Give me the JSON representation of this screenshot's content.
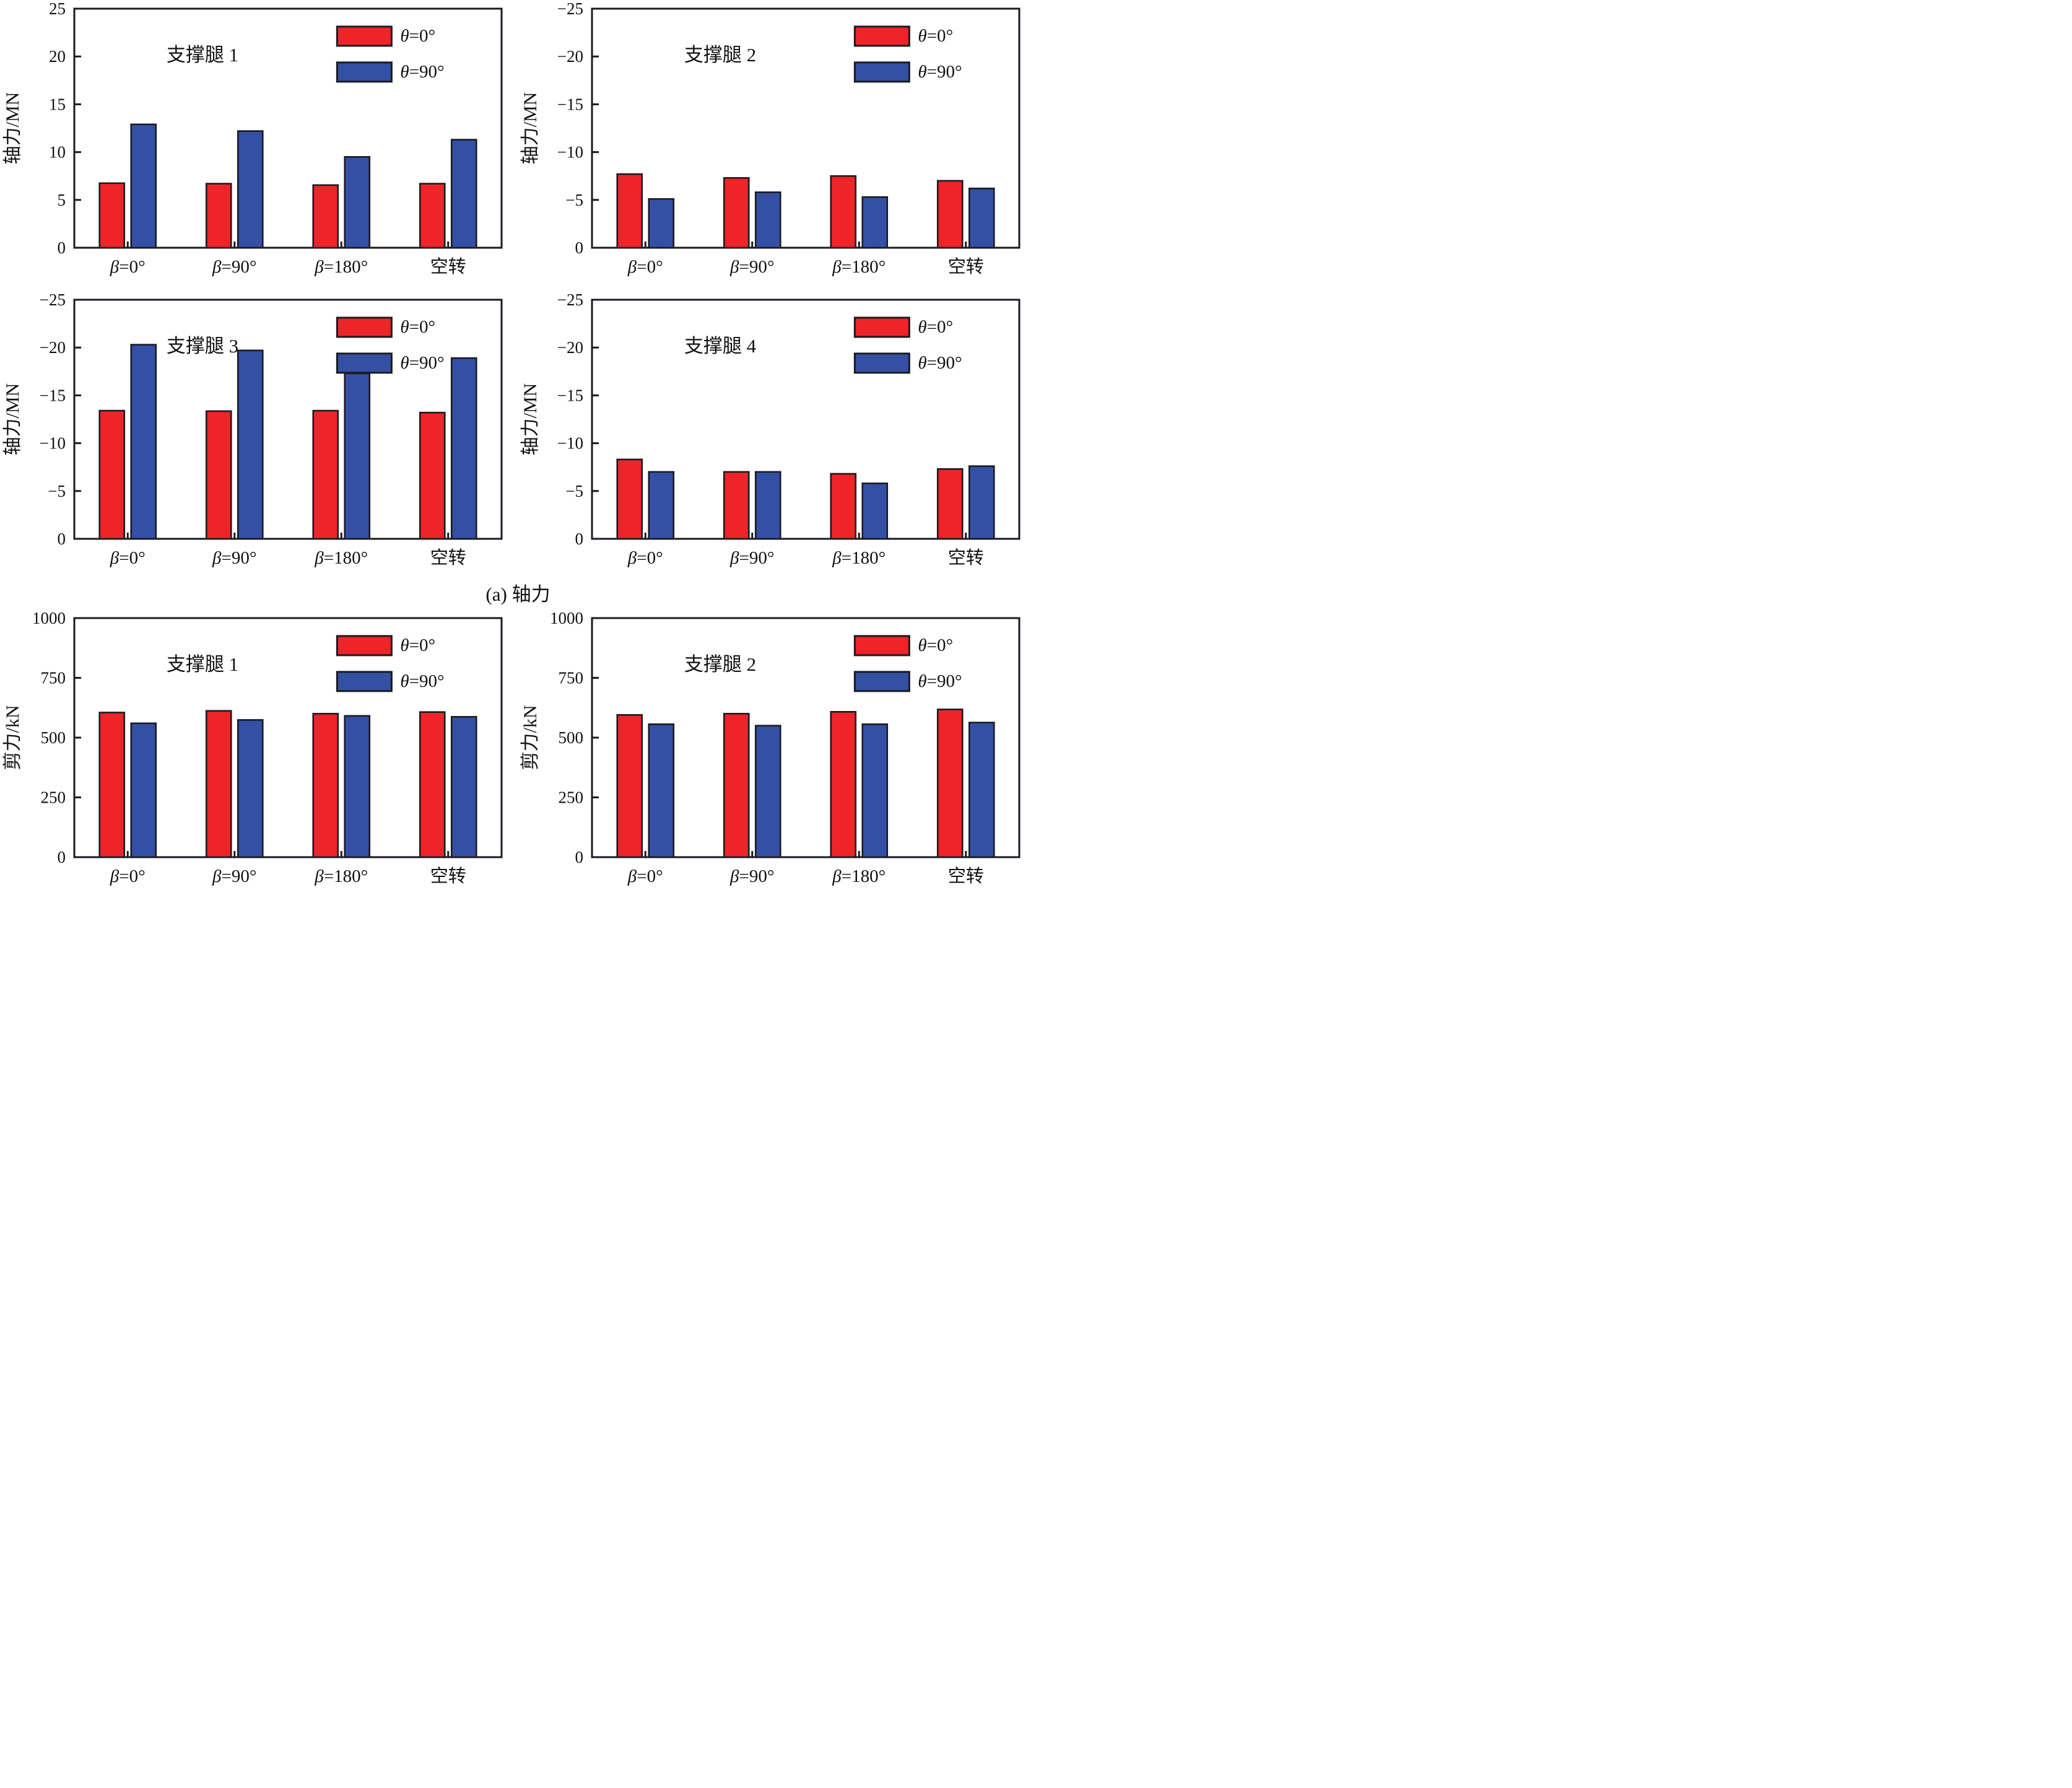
{
  "figure": {
    "caption_a": "(a) 轴力",
    "colors": {
      "red": "#ee2428",
      "blue": "#3450a5",
      "edge": "#1a1a22"
    },
    "legend": {
      "entries": [
        "θ=0°",
        "θ=90°"
      ]
    }
  },
  "chart_data": [
    {
      "id": "axial-leg1",
      "type": "bar",
      "title": "支撑腿 1",
      "ylabel": "轴力/MN",
      "categories": [
        "β=0°",
        "β=90°",
        "β=180°",
        "空转"
      ],
      "yticks": [
        "0",
        "5",
        "10",
        "15",
        "20",
        "25"
      ],
      "ylim": [
        0,
        25
      ],
      "axis_direction": "positive",
      "series": [
        {
          "name": "θ=0°",
          "color": "#ee2428",
          "values": [
            6.75,
            6.7,
            6.55,
            6.7
          ]
        },
        {
          "name": "θ=90°",
          "color": "#3450a5",
          "values": [
            12.9,
            12.2,
            9.5,
            11.3
          ]
        }
      ]
    },
    {
      "id": "axial-leg2",
      "type": "bar",
      "title": "支撑腿 2",
      "ylabel": "轴力/MN",
      "categories": [
        "β=0°",
        "β=90°",
        "β=180°",
        "空转"
      ],
      "yticks": [
        "0",
        "−5",
        "−10",
        "−15",
        "−20",
        "−25"
      ],
      "ylim": [
        0,
        -25
      ],
      "axis_direction": "negative",
      "series": [
        {
          "name": "θ=0°",
          "color": "#ee2428",
          "values": [
            -7.7,
            -7.3,
            -7.5,
            -7.0
          ]
        },
        {
          "name": "θ=90°",
          "color": "#3450a5",
          "values": [
            -5.1,
            -5.8,
            -5.3,
            -6.2
          ]
        }
      ]
    },
    {
      "id": "axial-leg3",
      "type": "bar",
      "title": "支撑腿 3",
      "ylabel": "轴力/MN",
      "categories": [
        "β=0°",
        "β=90°",
        "β=180°",
        "空转"
      ],
      "yticks": [
        "0",
        "−5",
        "−10",
        "−15",
        "−20",
        "−25"
      ],
      "ylim": [
        0,
        -25
      ],
      "axis_direction": "negative",
      "series": [
        {
          "name": "θ=0°",
          "color": "#ee2428",
          "values": [
            -13.4,
            -13.35,
            -13.4,
            -13.2
          ]
        },
        {
          "name": "θ=90°",
          "color": "#3450a5",
          "values": [
            -20.3,
            -19.7,
            -17.3,
            -18.9
          ]
        }
      ]
    },
    {
      "id": "axial-leg4",
      "type": "bar",
      "title": "支撑腿 4",
      "ylabel": "轴力/MN",
      "categories": [
        "β=0°",
        "β=90°",
        "β=180°",
        "空转"
      ],
      "yticks": [
        "0",
        "−5",
        "−10",
        "−15",
        "−20",
        "−25"
      ],
      "ylim": [
        0,
        -25
      ],
      "axis_direction": "negative",
      "series": [
        {
          "name": "θ=0°",
          "color": "#ee2428",
          "values": [
            -8.3,
            -7.0,
            -6.8,
            -7.3
          ]
        },
        {
          "name": "θ=90°",
          "color": "#3450a5",
          "values": [
            -7.0,
            -7.0,
            -5.8,
            -7.6
          ]
        }
      ]
    },
    {
      "id": "shear-leg1",
      "type": "bar",
      "title": "支撑腿 1",
      "ylabel": "剪力/kN",
      "categories": [
        "β=0°",
        "β=90°",
        "β=180°",
        "空转"
      ],
      "yticks": [
        "0",
        "250",
        "500",
        "750",
        "1000"
      ],
      "ylim": [
        0,
        1000
      ],
      "axis_direction": "positive",
      "series": [
        {
          "name": "θ=0°",
          "color": "#ee2428",
          "values": [
            605,
            612,
            600,
            607
          ]
        },
        {
          "name": "θ=90°",
          "color": "#3450a5",
          "values": [
            560,
            574,
            591,
            587
          ]
        }
      ]
    },
    {
      "id": "shear-leg2",
      "type": "bar",
      "title": "支撑腿 2",
      "ylabel": "剪力/kN",
      "categories": [
        "β=0°",
        "β=90°",
        "β=180°",
        "空转"
      ],
      "yticks": [
        "0",
        "250",
        "500",
        "750",
        "1000"
      ],
      "ylim": [
        0,
        1000
      ],
      "axis_direction": "positive",
      "series": [
        {
          "name": "θ=0°",
          "color": "#ee2428",
          "values": [
            595,
            600,
            608,
            618
          ]
        },
        {
          "name": "θ=90°",
          "color": "#3450a5",
          "values": [
            556,
            550,
            556,
            563
          ]
        }
      ]
    }
  ]
}
